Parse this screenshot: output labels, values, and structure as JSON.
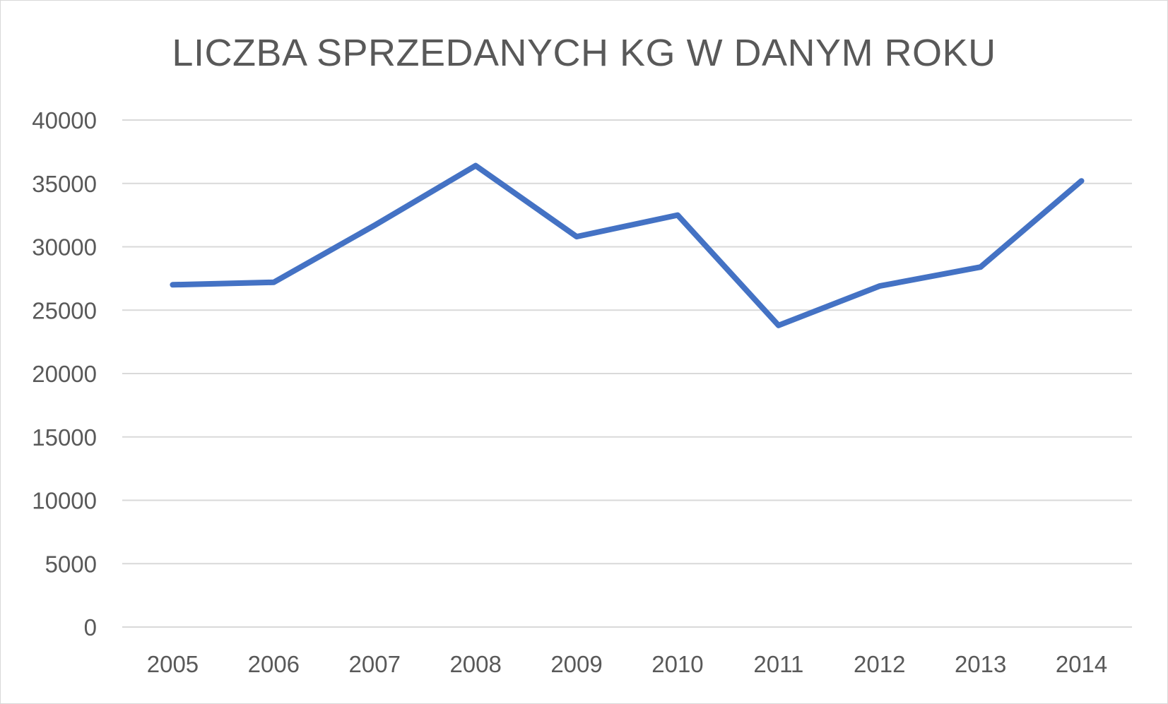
{
  "chart_data": {
    "type": "line",
    "title": "LICZBA SPRZEDANYCH KG W DANYM ROKU",
    "xlabel": "",
    "ylabel": "",
    "categories": [
      "2005",
      "2006",
      "2007",
      "2008",
      "2009",
      "2010",
      "2011",
      "2012",
      "2013",
      "2014"
    ],
    "series": [
      {
        "values": [
          27000,
          27200,
          31700,
          36400,
          30800,
          32500,
          23800,
          26900,
          28400,
          35200
        ]
      }
    ],
    "ylim": [
      0,
      40000
    ],
    "yticks": [
      "0",
      "5000",
      "10000",
      "15000",
      "20000",
      "25000",
      "30000",
      "35000",
      "40000"
    ],
    "grid": true,
    "legend": "none",
    "colors": {
      "series": "#4472c4",
      "grid": "#d9d9d9",
      "text": "#595959"
    }
  }
}
